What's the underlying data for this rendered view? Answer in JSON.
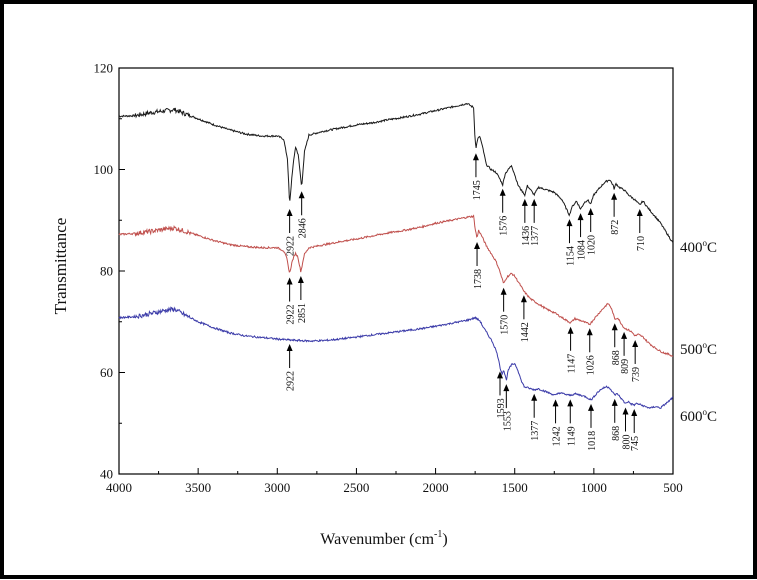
{
  "chart_data": {
    "type": "line",
    "title": "",
    "xlabel_main": "Wavenumber (cm",
    "xlabel_sup": "-1",
    "xlabel_tail": ")",
    "ylabel": "Transmittance",
    "xlim": [
      4000,
      500
    ],
    "ylim": [
      40,
      120
    ],
    "x_ticks": [
      4000,
      3500,
      3000,
      2500,
      2000,
      1500,
      1000,
      500
    ],
    "y_ticks": [
      40,
      60,
      80,
      100,
      120
    ],
    "grid": false,
    "legend": "none",
    "series": [
      {
        "label_main": "400",
        "label_sup": "o",
        "label_tail": "C",
        "color": "#1a1a1a",
        "points": [
          [
            4000,
            110.5
          ],
          [
            3900,
            110.6
          ],
          [
            3800,
            111.2
          ],
          [
            3700,
            111.6
          ],
          [
            3650,
            111.8
          ],
          [
            3600,
            111.2
          ],
          [
            3500,
            110.0
          ],
          [
            3400,
            108.8
          ],
          [
            3300,
            107.8
          ],
          [
            3200,
            107.0
          ],
          [
            3100,
            106.6
          ],
          [
            3000,
            106.6
          ],
          [
            2960,
            106.0
          ],
          [
            2935,
            102.0
          ],
          [
            2922,
            93.0
          ],
          [
            2905,
            99.5
          ],
          [
            2885,
            104.5
          ],
          [
            2868,
            103.0
          ],
          [
            2846,
            96.5
          ],
          [
            2828,
            103.5
          ],
          [
            2800,
            106.8
          ],
          [
            2700,
            107.6
          ],
          [
            2600,
            108.2
          ],
          [
            2500,
            108.8
          ],
          [
            2400,
            109.2
          ],
          [
            2300,
            109.8
          ],
          [
            2200,
            110.3
          ],
          [
            2100,
            110.9
          ],
          [
            2000,
            111.6
          ],
          [
            1900,
            112.3
          ],
          [
            1800,
            113.0
          ],
          [
            1760,
            112.2
          ],
          [
            1752,
            107.0
          ],
          [
            1745,
            104.0
          ],
          [
            1735,
            106.0
          ],
          [
            1720,
            106.5
          ],
          [
            1700,
            104.0
          ],
          [
            1680,
            101.0
          ],
          [
            1650,
            100.0
          ],
          [
            1620,
            99.5
          ],
          [
            1600,
            98.5
          ],
          [
            1576,
            97.0
          ],
          [
            1560,
            99.2
          ],
          [
            1540,
            100.0
          ],
          [
            1520,
            100.8
          ],
          [
            1500,
            99.0
          ],
          [
            1480,
            97.0
          ],
          [
            1460,
            96.0
          ],
          [
            1436,
            95.0
          ],
          [
            1420,
            96.8
          ],
          [
            1400,
            96.0
          ],
          [
            1377,
            95.0
          ],
          [
            1350,
            96.5
          ],
          [
            1300,
            96.0
          ],
          [
            1250,
            95.5
          ],
          [
            1200,
            94.0
          ],
          [
            1170,
            92.0
          ],
          [
            1154,
            91.0
          ],
          [
            1140,
            92.5
          ],
          [
            1110,
            93.8
          ],
          [
            1084,
            92.2
          ],
          [
            1060,
            93.5
          ],
          [
            1040,
            94.0
          ],
          [
            1020,
            93.2
          ],
          [
            1000,
            95.0
          ],
          [
            960,
            96.5
          ],
          [
            930,
            97.5
          ],
          [
            900,
            98.0
          ],
          [
            880,
            97.0
          ],
          [
            872,
            96.2
          ],
          [
            860,
            97.2
          ],
          [
            840,
            96.5
          ],
          [
            810,
            96.0
          ],
          [
            780,
            95.0
          ],
          [
            760,
            94.5
          ],
          [
            740,
            94.0
          ],
          [
            725,
            93.5
          ],
          [
            710,
            93.0
          ],
          [
            690,
            93.8
          ],
          [
            660,
            92.5
          ],
          [
            620,
            91.0
          ],
          [
            580,
            89.5
          ],
          [
            550,
            88.0
          ],
          [
            520,
            86.5
          ],
          [
            500,
            85.5
          ]
        ],
        "annotations": [
          2922,
          2846,
          1745,
          1576,
          1436,
          1377,
          1154,
          1084,
          1020,
          872,
          710
        ]
      },
      {
        "label_main": "500",
        "label_sup": "o",
        "label_tail": "C",
        "color": "#c0504d",
        "points": [
          [
            4000,
            87.2
          ],
          [
            3900,
            87.4
          ],
          [
            3800,
            87.8
          ],
          [
            3700,
            88.3
          ],
          [
            3650,
            88.5
          ],
          [
            3600,
            88.0
          ],
          [
            3500,
            87.0
          ],
          [
            3400,
            86.0
          ],
          [
            3300,
            85.2
          ],
          [
            3200,
            84.8
          ],
          [
            3100,
            84.6
          ],
          [
            3000,
            84.6
          ],
          [
            2960,
            84.0
          ],
          [
            2940,
            82.5
          ],
          [
            2922,
            79.5
          ],
          [
            2905,
            82.0
          ],
          [
            2885,
            83.5
          ],
          [
            2870,
            82.8
          ],
          [
            2851,
            79.8
          ],
          [
            2830,
            83.2
          ],
          [
            2800,
            84.6
          ],
          [
            2700,
            85.2
          ],
          [
            2600,
            85.8
          ],
          [
            2500,
            86.3
          ],
          [
            2400,
            86.9
          ],
          [
            2300,
            87.5
          ],
          [
            2200,
            88.0
          ],
          [
            2100,
            88.6
          ],
          [
            2000,
            89.4
          ],
          [
            1900,
            90.0
          ],
          [
            1800,
            90.6
          ],
          [
            1760,
            90.8
          ],
          [
            1748,
            88.0
          ],
          [
            1738,
            86.5
          ],
          [
            1728,
            88.0
          ],
          [
            1710,
            87.0
          ],
          [
            1680,
            85.0
          ],
          [
            1650,
            83.5
          ],
          [
            1620,
            82.0
          ],
          [
            1600,
            80.5
          ],
          [
            1570,
            77.5
          ],
          [
            1550,
            78.8
          ],
          [
            1520,
            79.5
          ],
          [
            1500,
            79.0
          ],
          [
            1470,
            77.5
          ],
          [
            1442,
            76.0
          ],
          [
            1420,
            75.2
          ],
          [
            1400,
            74.5
          ],
          [
            1350,
            73.5
          ],
          [
            1300,
            72.5
          ],
          [
            1250,
            71.8
          ],
          [
            1200,
            70.8
          ],
          [
            1170,
            70.2
          ],
          [
            1147,
            69.8
          ],
          [
            1120,
            70.6
          ],
          [
            1080,
            70.2
          ],
          [
            1050,
            69.8
          ],
          [
            1026,
            69.5
          ],
          [
            1000,
            70.5
          ],
          [
            960,
            72.0
          ],
          [
            930,
            73.0
          ],
          [
            910,
            73.6
          ],
          [
            895,
            73.0
          ],
          [
            880,
            71.8
          ],
          [
            868,
            70.5
          ],
          [
            850,
            70.8
          ],
          [
            830,
            69.8
          ],
          [
            809,
            68.8
          ],
          [
            790,
            68.5
          ],
          [
            770,
            68.2
          ],
          [
            755,
            67.8
          ],
          [
            739,
            67.2
          ],
          [
            720,
            67.5
          ],
          [
            690,
            67.0
          ],
          [
            660,
            66.0
          ],
          [
            620,
            65.0
          ],
          [
            580,
            64.2
          ],
          [
            550,
            63.8
          ],
          [
            520,
            63.5
          ],
          [
            500,
            63.2
          ]
        ],
        "annotations": [
          2922,
          2851,
          1738,
          1570,
          1442,
          1147,
          1026,
          868,
          809,
          739
        ]
      },
      {
        "label_main": "600",
        "label_sup": "o",
        "label_tail": "C",
        "color": "#3a3aa8",
        "points": [
          [
            4000,
            70.8
          ],
          [
            3900,
            71.0
          ],
          [
            3800,
            71.6
          ],
          [
            3700,
            72.3
          ],
          [
            3650,
            72.5
          ],
          [
            3600,
            71.6
          ],
          [
            3500,
            70.0
          ],
          [
            3400,
            68.8
          ],
          [
            3300,
            67.8
          ],
          [
            3200,
            67.2
          ],
          [
            3100,
            66.9
          ],
          [
            3000,
            66.6
          ],
          [
            2922,
            66.4
          ],
          [
            2800,
            66.2
          ],
          [
            2700,
            66.3
          ],
          [
            2600,
            66.6
          ],
          [
            2500,
            67.0
          ],
          [
            2400,
            67.4
          ],
          [
            2300,
            67.8
          ],
          [
            2200,
            68.2
          ],
          [
            2100,
            68.6
          ],
          [
            2000,
            69.1
          ],
          [
            1900,
            69.7
          ],
          [
            1800,
            70.3
          ],
          [
            1750,
            70.8
          ],
          [
            1720,
            70.2
          ],
          [
            1700,
            69.0
          ],
          [
            1680,
            68.0
          ],
          [
            1660,
            67.0
          ],
          [
            1640,
            66.0
          ],
          [
            1620,
            64.5
          ],
          [
            1605,
            63.0
          ],
          [
            1593,
            61.0
          ],
          [
            1580,
            59.8
          ],
          [
            1570,
            60.5
          ],
          [
            1553,
            58.5
          ],
          [
            1540,
            60.5
          ],
          [
            1520,
            61.5
          ],
          [
            1500,
            61.8
          ],
          [
            1480,
            60.5
          ],
          [
            1460,
            58.5
          ],
          [
            1440,
            57.2
          ],
          [
            1420,
            57.0
          ],
          [
            1400,
            56.8
          ],
          [
            1377,
            56.6
          ],
          [
            1350,
            56.8
          ],
          [
            1300,
            56.2
          ],
          [
            1270,
            55.8
          ],
          [
            1242,
            55.5
          ],
          [
            1220,
            56.0
          ],
          [
            1190,
            55.8
          ],
          [
            1170,
            55.6
          ],
          [
            1149,
            55.5
          ],
          [
            1120,
            55.8
          ],
          [
            1080,
            55.5
          ],
          [
            1050,
            55.2
          ],
          [
            1018,
            54.6
          ],
          [
            1000,
            55.2
          ],
          [
            980,
            56.0
          ],
          [
            950,
            56.8
          ],
          [
            920,
            57.2
          ],
          [
            900,
            57.0
          ],
          [
            885,
            56.2
          ],
          [
            868,
            55.6
          ],
          [
            850,
            55.8
          ],
          [
            830,
            55.0
          ],
          [
            815,
            54.4
          ],
          [
            800,
            53.9
          ],
          [
            785,
            54.3
          ],
          [
            765,
            53.8
          ],
          [
            745,
            53.6
          ],
          [
            730,
            53.9
          ],
          [
            700,
            53.6
          ],
          [
            670,
            53.2
          ],
          [
            640,
            53.0
          ],
          [
            610,
            53.3
          ],
          [
            580,
            53.0
          ],
          [
            560,
            53.5
          ],
          [
            540,
            54.0
          ],
          [
            520,
            54.5
          ],
          [
            505,
            55.0
          ],
          [
            500,
            55.0
          ]
        ],
        "annotations": [
          2922,
          1593,
          1553,
          1377,
          1242,
          1149,
          1018,
          868,
          800,
          745
        ]
      }
    ]
  }
}
